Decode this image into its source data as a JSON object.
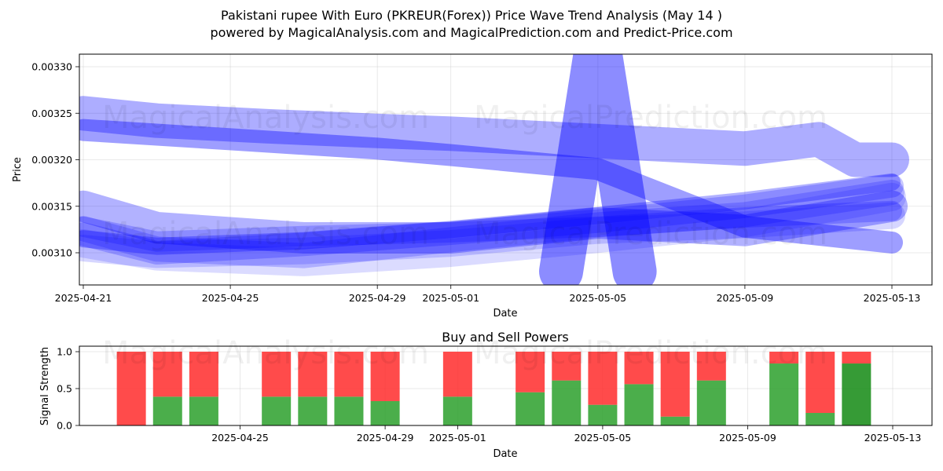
{
  "header": {
    "title_line1": "Pakistani rupee With Euro (PKREUR(Forex)) Price Wave Trend Analysis (May 14 )",
    "title_line2": "powered by MagicalAnalysis.com and MagicalPrediction.com and Predict-Price.com"
  },
  "watermarks": [
    "MagicalAnalysis.com",
    "MagicalPrediction.com"
  ],
  "colors": {
    "wave": "#0000ff",
    "buy": "#2ca02c",
    "sell": "#ff2b2b",
    "sell_dark": "#cc2b16",
    "buy_dark": "#138a13"
  },
  "chart_data": [
    {
      "type": "line",
      "xlabel": "Date",
      "ylabel": "Price",
      "x_ticks": [
        "2025-04-21",
        "2025-04-25",
        "2025-04-29",
        "2025-05-01",
        "2025-05-05",
        "2025-05-09",
        "2025-05-13"
      ],
      "y_ticks": [
        "0.00310",
        "0.00315",
        "0.00320",
        "0.00325",
        "0.00330"
      ],
      "xlim": [
        "2025-04-21",
        "2025-05-14"
      ],
      "ylim": [
        0.003066,
        0.003314
      ],
      "grid": true,
      "series": [
        {
          "x": [
            "2025-04-21",
            "2025-04-23",
            "2025-04-26",
            "2025-04-29",
            "2025-05-01",
            "2025-05-05",
            "2025-05-09",
            "2025-05-11",
            "2025-05-12",
            "2025-05-13"
          ],
          "y": [
            0.00325,
            0.003242,
            0.003236,
            0.003231,
            0.003228,
            0.00322,
            0.003212,
            0.003222,
            0.0032,
            0.0032
          ]
        },
        {
          "x": [
            "2025-04-21",
            "2025-04-25",
            "2025-04-29",
            "2025-05-01",
            "2025-05-05",
            "2025-05-09",
            "2025-05-13"
          ],
          "y": [
            0.003232,
            0.003222,
            0.003212,
            0.003205,
            0.00319,
            0.003128,
            0.003111
          ]
        },
        {
          "x": [
            "2025-04-21",
            "2025-04-23",
            "2025-04-27",
            "2025-05-01",
            "2025-05-05",
            "2025-05-09",
            "2025-05-13"
          ],
          "y": [
            0.00315,
            0.003127,
            0.003116,
            0.003116,
            0.003132,
            0.003124,
            0.00315
          ]
        },
        {
          "x": [
            "2025-04-21",
            "2025-04-23",
            "2025-04-27",
            "2025-05-01",
            "2025-05-05",
            "2025-05-09",
            "2025-05-13"
          ],
          "y": [
            0.003126,
            0.003104,
            0.003097,
            0.003114,
            0.00313,
            0.003141,
            0.003165
          ]
        },
        {
          "x": [
            "2025-04-21",
            "2025-04-23",
            "2025-04-27",
            "2025-05-01",
            "2025-05-05",
            "2025-05-09",
            "2025-05-13"
          ],
          "y": [
            0.00312,
            0.0031,
            0.003109,
            0.003121,
            0.003134,
            0.00315,
            0.003172
          ]
        },
        {
          "x": [
            "2025-04-21",
            "2025-04-23",
            "2025-04-27",
            "2025-05-01",
            "2025-05-05",
            "2025-05-09",
            "2025-05-13"
          ],
          "y": [
            0.003115,
            0.003107,
            0.003113,
            0.003125,
            0.00314,
            0.003156,
            0.003176
          ]
        },
        {
          "x": [
            "2025-04-21",
            "2025-04-23",
            "2025-04-27",
            "2025-05-01",
            "2025-05-05",
            "2025-05-09",
            "2025-05-13"
          ],
          "y": [
            0.00311,
            0.003096,
            0.00309,
            0.0031,
            0.003115,
            0.003132,
            0.00316
          ]
        },
        {
          "x": [
            "2025-04-21",
            "2025-04-23",
            "2025-04-27",
            "2025-05-01",
            "2025-05-05",
            "2025-05-09",
            "2025-05-13"
          ],
          "y": [
            0.003128,
            0.003112,
            0.003118,
            0.003122,
            0.003128,
            0.003138,
            0.003145
          ]
        },
        {
          "x": [
            "2025-04-21",
            "2025-04-23",
            "2025-04-27",
            "2025-05-01",
            "2025-05-05",
            "2025-05-09",
            "2025-05-13"
          ],
          "y": [
            0.003105,
            0.003098,
            0.003102,
            0.00311,
            0.003124,
            0.00313,
            0.00314
          ]
        },
        {
          "x": [
            "2025-05-04",
            "2025-05-05",
            "2025-05-06"
          ],
          "y": [
            0.00308,
            0.00333,
            0.00308
          ]
        }
      ]
    },
    {
      "type": "bar",
      "title": "Buy and Sell Powers",
      "xlabel": "Date",
      "ylabel": "Signal Strength",
      "x_ticks": [
        "2025-04-25",
        "2025-04-29",
        "2025-05-01",
        "2025-05-05",
        "2025-05-09",
        "2025-05-13"
      ],
      "y_ticks": [
        "0.0",
        "0.5",
        "1.0"
      ],
      "ylim": [
        0,
        1.05
      ],
      "grid": true,
      "dates": [
        "2025-04-22",
        "2025-04-23",
        "2025-04-24",
        "2025-04-26",
        "2025-04-27",
        "2025-04-28",
        "2025-04-29",
        "2025-05-01",
        "2025-05-03",
        "2025-05-04",
        "2025-05-05",
        "2025-05-06",
        "2025-05-07",
        "2025-05-08",
        "2025-05-10",
        "2025-05-11",
        "2025-05-12"
      ],
      "buy": [
        0.0,
        0.39,
        0.39,
        0.39,
        0.39,
        0.39,
        0.33,
        0.39,
        0.45,
        0.61,
        0.28,
        0.56,
        0.12,
        0.61,
        0.84,
        0.17,
        0.84
      ],
      "sell": [
        1.0,
        0.61,
        0.61,
        0.61,
        0.61,
        0.61,
        0.67,
        0.61,
        0.55,
        0.39,
        0.72,
        0.44,
        0.88,
        0.39,
        0.16,
        0.83,
        0.16
      ]
    }
  ]
}
